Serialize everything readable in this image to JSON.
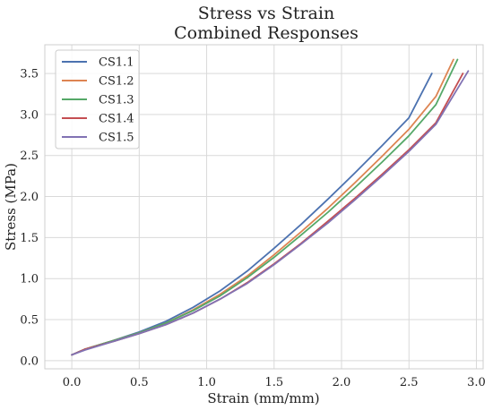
{
  "chart_data": {
    "type": "line",
    "title": "Stress vs Strain",
    "subtitle": "Combined Responses",
    "xlabel": "Strain (mm/mm)",
    "ylabel": "Stress (MPa)",
    "xlim": [
      -0.2,
      3.05
    ],
    "ylim": [
      -0.1,
      3.85
    ],
    "xticks": [
      "0.0",
      "0.5",
      "1.0",
      "1.5",
      "2.0",
      "2.5",
      "3.0"
    ],
    "yticks": [
      "0.0",
      "0.5",
      "1.0",
      "1.5",
      "2.0",
      "2.5",
      "3.0",
      "3.5"
    ],
    "grid": true,
    "legend": "upper-left",
    "series": [
      {
        "name": "CS1.1",
        "color": "#4c72b0",
        "x": [
          0.0,
          0.1,
          0.3,
          0.5,
          0.7,
          0.9,
          1.1,
          1.3,
          1.5,
          1.7,
          1.9,
          2.1,
          2.3,
          2.5,
          2.67
        ],
        "y": [
          0.07,
          0.14,
          0.24,
          0.35,
          0.48,
          0.65,
          0.85,
          1.09,
          1.37,
          1.66,
          1.97,
          2.29,
          2.62,
          2.96,
          3.5
        ]
      },
      {
        "name": "CS1.2",
        "color": "#dd8452",
        "x": [
          0.0,
          0.1,
          0.3,
          0.5,
          0.7,
          0.9,
          1.1,
          1.3,
          1.5,
          1.7,
          1.9,
          2.1,
          2.3,
          2.5,
          2.7,
          2.83
        ],
        "y": [
          0.07,
          0.14,
          0.24,
          0.34,
          0.46,
          0.62,
          0.81,
          1.03,
          1.29,
          1.57,
          1.86,
          2.17,
          2.49,
          2.82,
          3.22,
          3.67
        ]
      },
      {
        "name": "CS1.3",
        "color": "#55a868",
        "x": [
          0.0,
          0.1,
          0.3,
          0.5,
          0.7,
          0.9,
          1.1,
          1.3,
          1.5,
          1.7,
          1.9,
          2.1,
          2.3,
          2.5,
          2.7,
          2.86
        ],
        "y": [
          0.07,
          0.14,
          0.24,
          0.34,
          0.46,
          0.61,
          0.79,
          1.01,
          1.26,
          1.53,
          1.81,
          2.11,
          2.42,
          2.74,
          3.12,
          3.67
        ]
      },
      {
        "name": "CS1.4",
        "color": "#c44e52",
        "x": [
          0.0,
          0.1,
          0.3,
          0.5,
          0.7,
          0.9,
          1.1,
          1.3,
          1.5,
          1.7,
          1.9,
          2.1,
          2.3,
          2.5,
          2.7,
          2.9
        ],
        "y": [
          0.07,
          0.14,
          0.23,
          0.33,
          0.44,
          0.58,
          0.75,
          0.95,
          1.18,
          1.43,
          1.7,
          1.98,
          2.27,
          2.57,
          2.9,
          3.5
        ]
      },
      {
        "name": "CS1.5",
        "color": "#8172b3",
        "x": [
          0.0,
          0.1,
          0.3,
          0.5,
          0.7,
          0.9,
          1.1,
          1.3,
          1.5,
          1.7,
          1.9,
          2.1,
          2.3,
          2.5,
          2.7,
          2.94
        ],
        "y": [
          0.07,
          0.13,
          0.23,
          0.33,
          0.44,
          0.58,
          0.75,
          0.94,
          1.17,
          1.42,
          1.68,
          1.96,
          2.25,
          2.55,
          2.88,
          3.53
        ]
      }
    ]
  }
}
